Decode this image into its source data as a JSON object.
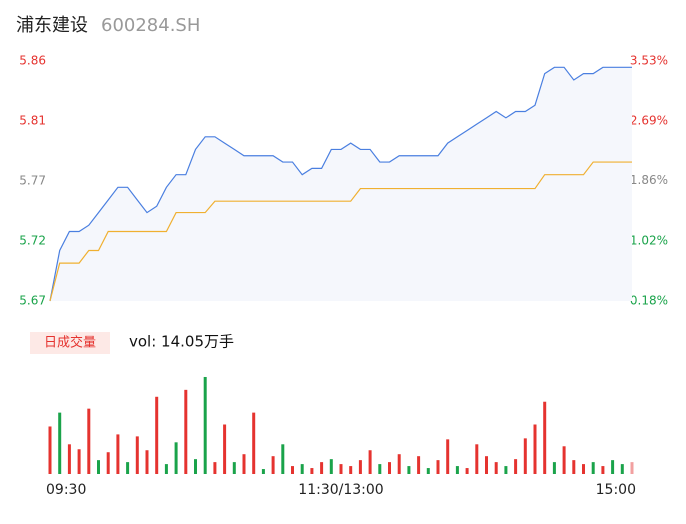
{
  "header": {
    "name": "浦东建设",
    "code": "600284.SH"
  },
  "chart_data": [
    {
      "type": "line",
      "x": [
        0,
        4,
        8,
        12,
        16,
        20,
        24,
        28,
        32,
        36,
        40,
        44,
        48,
        52,
        56,
        60,
        64,
        68,
        72,
        76,
        80,
        84,
        88,
        92,
        96,
        100,
        104,
        108,
        112,
        116,
        120,
        124,
        128,
        132,
        136,
        140,
        144,
        148,
        152,
        156,
        160,
        164,
        168,
        172,
        176,
        180,
        184,
        188,
        192,
        196,
        200,
        204,
        208,
        212,
        216,
        220,
        224,
        228,
        232,
        236,
        240
      ],
      "xlim": [
        0,
        240
      ],
      "xticks": [
        {
          "value": 0,
          "label": "09:30"
        },
        {
          "value": 120,
          "label": "11:30/13:00"
        },
        {
          "value": 240,
          "label": "15:00"
        }
      ],
      "ylim": [
        5.67,
        5.86
      ],
      "yticks": [
        {
          "value": 5.67,
          "label": "5.67"
        },
        {
          "value": 5.7175,
          "label": "5.72"
        },
        {
          "value": 5.765,
          "label": "5.77"
        },
        {
          "value": 5.8125,
          "label": "5.81"
        },
        {
          "value": 5.86,
          "label": "5.86"
        }
      ],
      "y2lim": [
        0.18,
        3.53
      ],
      "y2ticks": [
        {
          "value": 0.18,
          "label": "0.18%"
        },
        {
          "value": 1.02,
          "label": "1.02%"
        },
        {
          "value": 1.86,
          "label": "1.86%"
        },
        {
          "value": 2.69,
          "label": "2.69%"
        },
        {
          "value": 3.53,
          "label": "3.53%"
        }
      ],
      "tick_colors": [
        "#1aa34a",
        "#1aa34a",
        "#888888",
        "#e5332f",
        "#e5332f"
      ],
      "series": [
        {
          "color": "#4a7fe0",
          "values": [
            5.67,
            5.71,
            5.725,
            5.725,
            5.73,
            5.74,
            5.75,
            5.76,
            5.76,
            5.75,
            5.74,
            5.745,
            5.76,
            5.77,
            5.77,
            5.79,
            5.8,
            5.8,
            5.795,
            5.79,
            5.785,
            5.785,
            5.785,
            5.785,
            5.78,
            5.78,
            5.77,
            5.775,
            5.775,
            5.79,
            5.79,
            5.795,
            5.79,
            5.79,
            5.78,
            5.78,
            5.785,
            5.785,
            5.785,
            5.785,
            5.785,
            5.795,
            5.8,
            5.805,
            5.81,
            5.815,
            5.82,
            5.815,
            5.82,
            5.82,
            5.825,
            5.85,
            5.855,
            5.855,
            5.845,
            5.85,
            5.85,
            5.855,
            5.855,
            5.855,
            5.855
          ]
        },
        {
          "color": "#f0b030",
          "values": [
            5.67,
            5.7,
            5.7,
            5.7,
            5.71,
            5.71,
            5.725,
            5.725,
            5.725,
            5.725,
            5.725,
            5.725,
            5.725,
            5.74,
            5.74,
            5.74,
            5.74,
            5.749,
            5.749,
            5.749,
            5.749,
            5.749,
            5.749,
            5.749,
            5.749,
            5.749,
            5.749,
            5.749,
            5.749,
            5.749,
            5.749,
            5.749,
            5.759,
            5.759,
            5.759,
            5.759,
            5.759,
            5.759,
            5.759,
            5.759,
            5.759,
            5.759,
            5.759,
            5.759,
            5.759,
            5.759,
            5.759,
            5.759,
            5.759,
            5.759,
            5.759,
            5.77,
            5.77,
            5.77,
            5.77,
            5.77,
            5.78,
            5.78,
            5.78,
            5.78,
            5.78
          ]
        }
      ]
    },
    {
      "type": "bar",
      "legend": "日成交量",
      "label": "vol: 14.05万手",
      "x": [
        0,
        4,
        8,
        12,
        16,
        20,
        24,
        28,
        32,
        36,
        40,
        44,
        48,
        52,
        56,
        60,
        64,
        68,
        72,
        76,
        80,
        84,
        88,
        92,
        96,
        100,
        104,
        108,
        112,
        116,
        120,
        124,
        128,
        132,
        136,
        140,
        144,
        148,
        152,
        156,
        160,
        164,
        168,
        172,
        176,
        180,
        184,
        188,
        192,
        196,
        200,
        204,
        208,
        212,
        216,
        220,
        224,
        228,
        232,
        236,
        240
      ],
      "ylim": [
        0,
        100
      ],
      "values": [
        48,
        62,
        30,
        25,
        66,
        14,
        22,
        40,
        12,
        38,
        24,
        78,
        10,
        32,
        85,
        15,
        98,
        12,
        50,
        12,
        20,
        62,
        5,
        18,
        30,
        8,
        10,
        6,
        12,
        15,
        10,
        8,
        14,
        24,
        10,
        12,
        20,
        8,
        18,
        6,
        14,
        35,
        8,
        6,
        30,
        18,
        12,
        8,
        15,
        36,
        50,
        73,
        12,
        28,
        14,
        10,
        12,
        8,
        14,
        10,
        12
      ],
      "colors": [
        "#e5332f",
        "#1aa34a",
        "#e5332f",
        "#e5332f",
        "#e5332f",
        "#1aa34a",
        "#e5332f",
        "#e5332f",
        "#1aa34a",
        "#e5332f",
        "#e5332f",
        "#e5332f",
        "#1aa34a",
        "#1aa34a",
        "#e5332f",
        "#1aa34a",
        "#1aa34a",
        "#e5332f",
        "#e5332f",
        "#1aa34a",
        "#e5332f",
        "#e5332f",
        "#1aa34a",
        "#e5332f",
        "#1aa34a",
        "#e5332f",
        "#1aa34a",
        "#e5332f",
        "#e5332f",
        "#1aa34a",
        "#e5332f",
        "#e5332f",
        "#e5332f",
        "#e5332f",
        "#1aa34a",
        "#e5332f",
        "#e5332f",
        "#1aa34a",
        "#e5332f",
        "#1aa34a",
        "#e5332f",
        "#e5332f",
        "#1aa34a",
        "#e5332f",
        "#e5332f",
        "#e5332f",
        "#e5332f",
        "#1aa34a",
        "#e5332f",
        "#e5332f",
        "#e5332f",
        "#e5332f",
        "#1aa34a",
        "#e5332f",
        "#e5332f",
        "#e5332f",
        "#1aa34a",
        "#e5332f",
        "#1aa34a",
        "#1aa34a",
        "#f2a0a0"
      ]
    }
  ]
}
